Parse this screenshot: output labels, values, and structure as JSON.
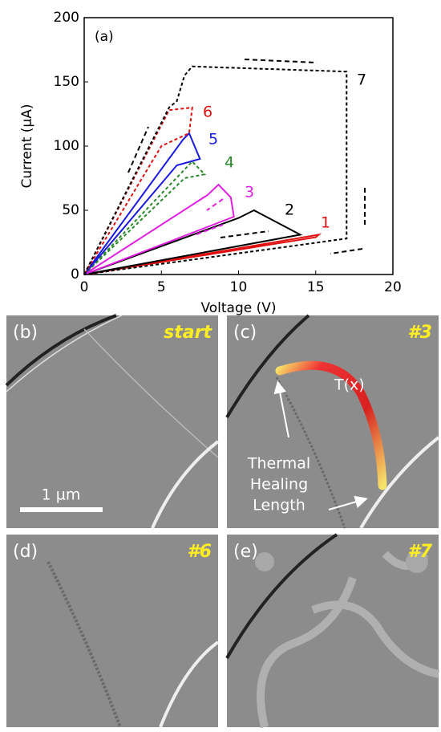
{
  "chart_data": {
    "type": "line",
    "panel_label": "(a)",
    "x_label": "Voltage (V)",
    "y_label": "Current (μA)",
    "xlim": [
      0,
      20
    ],
    "ylim": [
      0,
      200
    ],
    "xticks": [
      0,
      5,
      10,
      15,
      20
    ],
    "yticks": [
      0,
      50,
      100,
      150,
      200
    ],
    "series": [
      {
        "name": "1",
        "color": "#e01010",
        "x": [
          0,
          15,
          15.2,
          0
        ],
        "values": [
          0,
          29,
          31,
          0
        ]
      },
      {
        "name": "2",
        "color": "#000000",
        "x": [
          0,
          14,
          11,
          10,
          0
        ],
        "values": [
          0,
          31,
          50,
          44,
          0
        ]
      },
      {
        "name": "3",
        "color": "#e020e0",
        "x": [
          0,
          9.7,
          9.5,
          8.7,
          8,
          0
        ],
        "values": [
          0,
          45,
          60,
          70,
          62,
          0
        ]
      },
      {
        "name": "4",
        "color": "#2a8a2a",
        "dashed": true,
        "x": [
          0,
          7,
          7.8,
          6.5,
          0
        ],
        "values": [
          0,
          88,
          78,
          75,
          0
        ]
      },
      {
        "name": "5",
        "color": "#1a1ae0",
        "x": [
          0,
          6.4,
          6.8,
          7.5,
          6,
          0
        ],
        "values": [
          0,
          105,
          110,
          90,
          85,
          0
        ]
      },
      {
        "name": "6",
        "color": "#e01010",
        "dashed": true,
        "x": [
          0,
          5.5,
          7,
          6.8,
          5,
          0
        ],
        "values": [
          0,
          128,
          130,
          110,
          100,
          0
        ]
      },
      {
        "name": "7",
        "color": "#000000",
        "dashed": true,
        "x": [
          0,
          5.5,
          6,
          6.5,
          7,
          17,
          17,
          0
        ],
        "values": [
          0,
          130,
          135,
          155,
          162,
          158,
          28,
          0
        ]
      }
    ]
  },
  "panels": [
    {
      "label": "(b)",
      "tag": "start",
      "scale_bar": "1 µm"
    },
    {
      "label": "(c)",
      "tag": "#3",
      "curve_label": "T(x)",
      "annotation": [
        "Thermal",
        "Healing",
        "Length"
      ]
    },
    {
      "label": "(d)",
      "tag": "#6"
    },
    {
      "label": "(e)",
      "tag": "#7"
    }
  ]
}
